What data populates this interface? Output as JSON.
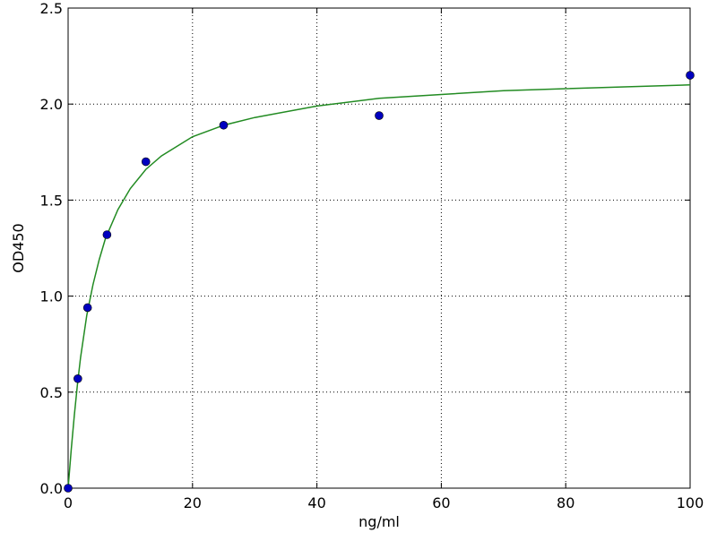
{
  "chart_data": {
    "type": "scatter",
    "xlabel": "ng/ml",
    "ylabel": "OD450",
    "xlim": [
      0,
      100
    ],
    "ylim": [
      0,
      2.5
    ],
    "xticks": [
      0,
      20,
      40,
      60,
      80,
      100
    ],
    "yticks": [
      {
        "value": 0,
        "label": "0.0"
      },
      0.5,
      {
        "value": 1,
        "label": "1.0"
      },
      1.5,
      {
        "value": 2,
        "label": "2.0"
      },
      2.5
    ],
    "grid": true,
    "series": [
      {
        "style": "markers",
        "color": "#0000bf",
        "x": [
          0,
          1.5625,
          3.125,
          6.25,
          12.5,
          25,
          50,
          100
        ],
        "values": [
          0,
          0.57,
          0.94,
          1.32,
          1.7,
          1.89,
          1.94,
          2.15
        ]
      },
      {
        "style": "line",
        "color": "#228b22",
        "x": [
          0,
          0.5,
          1,
          1.5,
          2,
          3,
          4,
          5,
          6,
          8,
          10,
          12.5,
          15,
          20,
          25,
          30,
          40,
          50,
          60,
          70,
          80,
          90,
          100
        ],
        "values": [
          0,
          0.2,
          0.38,
          0.54,
          0.68,
          0.9,
          1.06,
          1.19,
          1.3,
          1.45,
          1.56,
          1.66,
          1.73,
          1.83,
          1.89,
          1.93,
          1.99,
          2.03,
          2.05,
          2.07,
          2.08,
          2.09,
          2.1
        ]
      }
    ]
  }
}
